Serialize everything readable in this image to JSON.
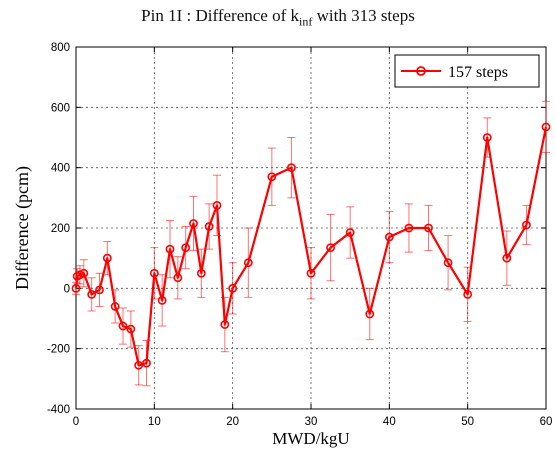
{
  "chart_data": {
    "type": "line",
    "title_main": "Pin 1I : Difference of k",
    "title_sub": "inf",
    "title_rest": " with 313 steps",
    "xlabel": "MWD/kgU",
    "ylabel": "Difference (pcm)",
    "xlim": [
      0,
      60
    ],
    "ylim": [
      -400,
      800
    ],
    "xticks": [
      0,
      10,
      20,
      30,
      40,
      50,
      60
    ],
    "yticks": [
      -400,
      -200,
      0,
      200,
      400,
      600,
      800
    ],
    "grid": true,
    "legend_position": "top-right",
    "series": [
      {
        "name": "157 steps",
        "color": "#ff0000",
        "marker": "circle",
        "x": [
          0,
          0.15,
          0.5,
          1,
          2,
          3,
          4,
          5,
          6,
          7,
          8,
          9,
          10,
          11,
          12,
          13,
          14,
          15,
          16,
          17,
          18,
          19,
          20,
          22,
          25,
          27.5,
          30,
          32.5,
          35,
          37.5,
          40,
          42.5,
          45,
          47.5,
          50,
          52.5,
          55,
          57.5,
          60
        ],
        "values": [
          0,
          40,
          45,
          50,
          -20,
          -5,
          100,
          -60,
          -125,
          -135,
          -255,
          -248,
          50,
          -40,
          130,
          35,
          135,
          215,
          50,
          205,
          275,
          -120,
          0,
          85,
          370,
          400,
          50,
          135,
          185,
          -85,
          170,
          200,
          200,
          85,
          -20,
          500,
          100,
          210,
          535
        ],
        "errors": [
          20,
          25,
          30,
          45,
          55,
          55,
          55,
          55,
          60,
          60,
          65,
          75,
          85,
          85,
          95,
          70,
          70,
          90,
          80,
          75,
          100,
          90,
          85,
          115,
          95,
          100,
          85,
          110,
          85,
          85,
          85,
          80,
          75,
          90,
          90,
          65,
          90,
          65,
          85
        ]
      }
    ]
  }
}
